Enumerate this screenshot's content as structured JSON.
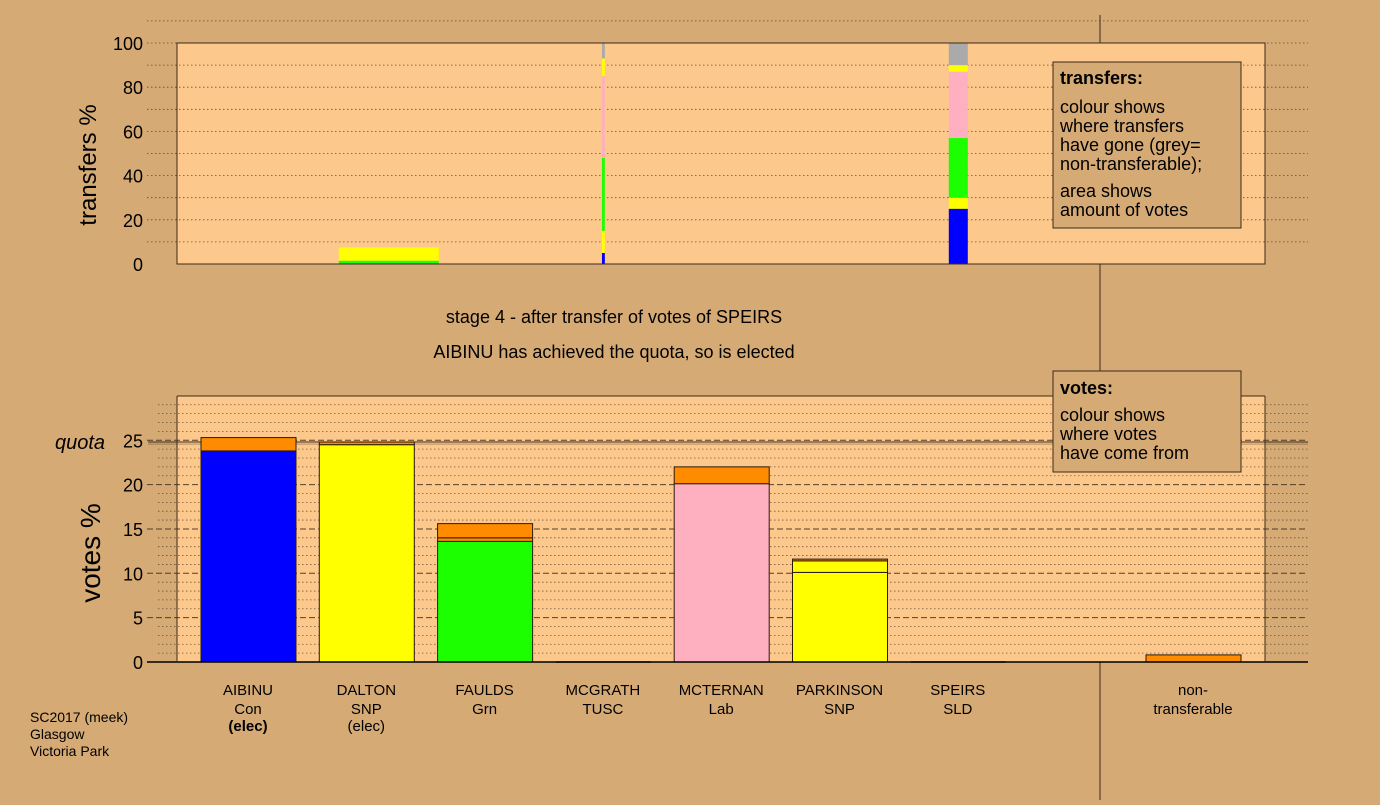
{
  "colors": {
    "background": "#d6aa75",
    "plot_bg": "#fcc88c",
    "Con": "#0000ff",
    "SNP": "#ffff00",
    "Grn": "#1cff00",
    "Lab": "#ffb0c0",
    "TUSC": "#7a3a00",
    "SLD": "#ffa000",
    "transfer": "#ff8c00",
    "nontransferable": "#aaaaaa"
  },
  "top_chart": {
    "ylabel": "transfers %",
    "ticks": [
      "0",
      "20",
      "40",
      "60",
      "80",
      "100"
    ]
  },
  "status": {
    "line1": "stage 4 - after transfer of votes of SPEIRS",
    "line2": "AIBINU has achieved the quota, so is elected"
  },
  "bottom_chart": {
    "ylabel": "votes %",
    "quota_label": "quota",
    "ticks": [
      "0",
      "5",
      "10",
      "15",
      "20",
      "25"
    ]
  },
  "legend_transfers": {
    "title": "transfers:",
    "lines_a": [
      "colour shows",
      "where transfers",
      "have gone (grey=",
      "non-transferable);"
    ],
    "lines_b": [
      "area shows",
      "amount of votes"
    ]
  },
  "legend_votes": {
    "title": "votes:",
    "lines": [
      "colour shows",
      "where votes",
      "have come from"
    ]
  },
  "candidates": [
    {
      "name": "AIBINU",
      "party": "Con",
      "status": "(elec)",
      "status_bold": true
    },
    {
      "name": "DALTON",
      "party": "SNP",
      "status": "(elec)",
      "status_bold": false
    },
    {
      "name": "FAULDS",
      "party": "Grn",
      "status": "",
      "status_bold": false
    },
    {
      "name": "MCGRATH",
      "party": "TUSC",
      "status": "",
      "status_bold": false
    },
    {
      "name": "MCTERNAN",
      "party": "Lab",
      "status": "",
      "status_bold": false
    },
    {
      "name": "PARKINSON",
      "party": "SNP",
      "status": "",
      "status_bold": false
    },
    {
      "name": "SPEIRS",
      "party": "SLD",
      "status": "",
      "status_bold": false
    }
  ],
  "nontransferable_label": [
    "non-",
    "transferable"
  ],
  "footer": [
    "SC2017 (meek)",
    "Glasgow",
    "Victoria Park"
  ],
  "chart_data": [
    {
      "type": "bar",
      "title": "",
      "ylabel": "transfers %",
      "ylim": [
        0,
        100
      ],
      "grid": true,
      "categories": [
        "AIBINU",
        "DALTON",
        "FAULDS",
        "MCGRATH",
        "MCTERNAN",
        "PARKINSON",
        "SPEIRS"
      ],
      "bars": [
        {
          "category": "DALTON",
          "width": 1.0,
          "segments": [
            {
              "color": "Grn",
              "value": 1.5
            },
            {
              "color": "SNP",
              "value": 6.0
            }
          ]
        },
        {
          "category": "MCGRATH",
          "width": 0.03,
          "segments": [
            {
              "color": "Con",
              "value": 5
            },
            {
              "color": "SNP",
              "value": 10
            },
            {
              "color": "Grn",
              "value": 33
            },
            {
              "color": "Lab",
              "value": 37
            },
            {
              "color": "SNP",
              "value": 8
            },
            {
              "color": "nontransferable",
              "value": 7
            }
          ]
        },
        {
          "category": "SPEIRS",
          "width": 0.2,
          "segments": [
            {
              "color": "Con",
              "value": 25
            },
            {
              "color": "SNP",
              "value": 5
            },
            {
              "color": "Grn",
              "value": 27
            },
            {
              "color": "Lab",
              "value": 30
            },
            {
              "color": "SNP",
              "value": 3
            },
            {
              "color": "nontransferable",
              "value": 10
            }
          ]
        }
      ]
    },
    {
      "type": "bar",
      "title": "",
      "ylabel": "votes %",
      "ylim": [
        0,
        25.8
      ],
      "quota": 24.8,
      "grid": true,
      "categories": [
        "AIBINU",
        "DALTON",
        "FAULDS",
        "MCGRATH",
        "MCTERNAN",
        "PARKINSON",
        "SPEIRS",
        "non-transferable"
      ],
      "bars": [
        {
          "category": "AIBINU",
          "segments": [
            {
              "color": "Con",
              "value": 23.8
            },
            {
              "color": "transfer",
              "value": 1.5
            }
          ]
        },
        {
          "category": "DALTON",
          "segments": [
            {
              "color": "SNP",
              "value": 24.5
            },
            {
              "color": "transfer",
              "value": 0.3
            }
          ]
        },
        {
          "category": "FAULDS",
          "segments": [
            {
              "color": "Grn",
              "value": 13.6
            },
            {
              "color": "transfer",
              "value": 0.4
            },
            {
              "color": "transfer",
              "value": 1.6
            }
          ]
        },
        {
          "category": "MCGRATH",
          "segments": []
        },
        {
          "category": "MCTERNAN",
          "segments": [
            {
              "color": "Lab",
              "value": 20.1
            },
            {
              "color": "transfer",
              "value": 1.9
            }
          ]
        },
        {
          "category": "PARKINSON",
          "segments": [
            {
              "color": "SNP",
              "value": 10.1
            },
            {
              "color": "SNP",
              "value": 1.3
            },
            {
              "color": "transfer",
              "value": 0.2
            }
          ]
        },
        {
          "category": "SPEIRS",
          "segments": []
        },
        {
          "category": "non-transferable",
          "segments": [
            {
              "color": "transfer",
              "value": 0.8
            }
          ]
        }
      ]
    }
  ]
}
